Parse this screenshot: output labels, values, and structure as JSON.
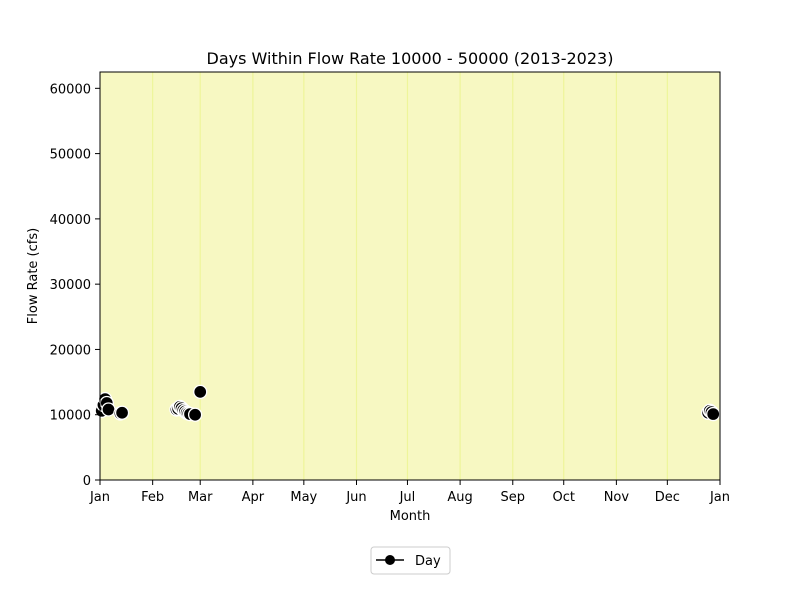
{
  "chart_data": {
    "type": "scatter",
    "title": "Days Within Flow Rate 10000 - 50000 (2013-2023)",
    "xlabel": "Month",
    "ylabel": "Flow Rate (cfs)",
    "xlim": [
      "Jan",
      "Jan"
    ],
    "ylim": [
      0,
      62500
    ],
    "x_tick_labels": [
      "Jan",
      "Feb",
      "Mar",
      "Apr",
      "May",
      "Jun",
      "Jul",
      "Aug",
      "Sep",
      "Oct",
      "Nov",
      "Dec",
      "Jan"
    ],
    "y_ticks": [
      0,
      10000,
      20000,
      30000,
      40000,
      50000,
      60000
    ],
    "y_tick_labels": [
      "0",
      "10000",
      "20000",
      "30000",
      "40000",
      "50000",
      "60000"
    ],
    "background_color": "#f7f8c2",
    "gridline_color": "#eef59a",
    "grid": "vertical-lines-at-months",
    "legend_position": "bottom-center-below-axes",
    "series": [
      {
        "name": "Day",
        "color": "#000000",
        "edge_color": "#ffffff",
        "marker": "circle",
        "points": [
          {
            "x": "Jan 2",
            "y": 10600
          },
          {
            "x": "Jan 3",
            "y": 11500
          },
          {
            "x": "Jan 4",
            "y": 12400
          },
          {
            "x": "Jan 5",
            "y": 11800
          },
          {
            "x": "Jan 6",
            "y": 10800
          },
          {
            "x": "Jan 13",
            "y": 10200
          },
          {
            "x": "Jan 14",
            "y": 10300
          },
          {
            "x": "Feb 15",
            "y": 10800
          },
          {
            "x": "Feb 16",
            "y": 10900
          },
          {
            "x": "Feb 17",
            "y": 11200
          },
          {
            "x": "Feb 18",
            "y": 11000
          },
          {
            "x": "Feb 19",
            "y": 10700
          },
          {
            "x": "Feb 20",
            "y": 10500
          },
          {
            "x": "Feb 21",
            "y": 10300
          },
          {
            "x": "Feb 22",
            "y": 10200
          },
          {
            "x": "Feb 23",
            "y": 10100
          },
          {
            "x": "Feb 26",
            "y": 10000
          },
          {
            "x": "Mar 1",
            "y": 13500
          },
          {
            "x": "Dec 25",
            "y": 10300
          },
          {
            "x": "Dec 26",
            "y": 10600
          },
          {
            "x": "Dec 27",
            "y": 10400
          },
          {
            "x": "Dec 28",
            "y": 10100
          }
        ]
      }
    ]
  }
}
